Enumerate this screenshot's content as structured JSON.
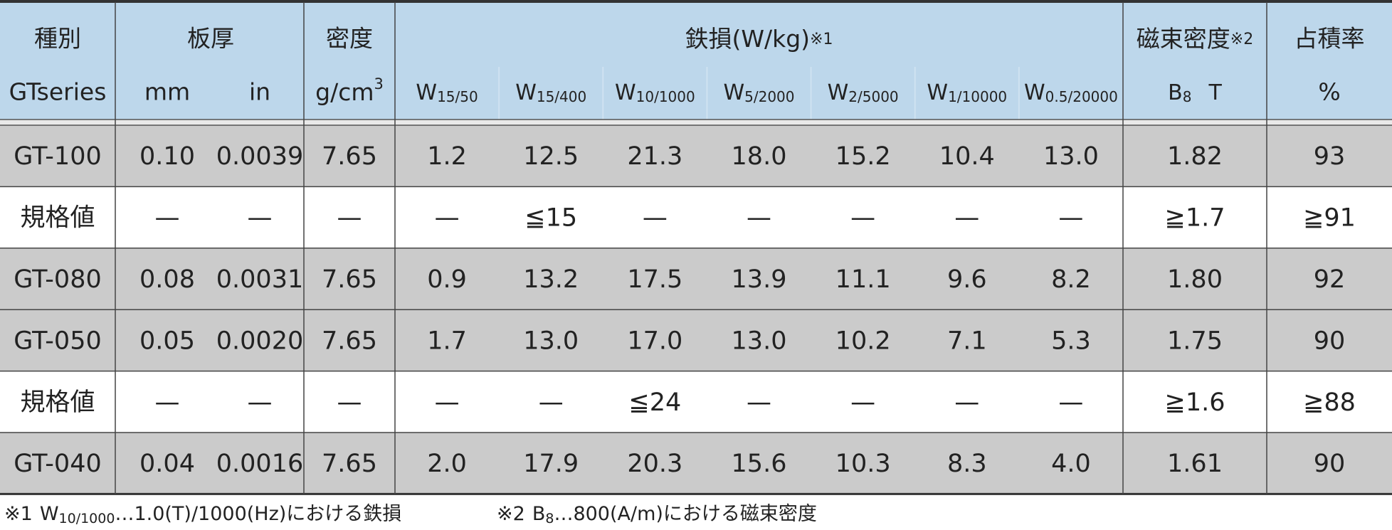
{
  "header": {
    "top": [
      "種別",
      "板厚",
      "密度",
      {
        "text": "鉄損(W/kg)",
        "note": "※1"
      },
      {
        "text": "磁束密度",
        "note": "※2"
      },
      "占積率"
    ],
    "bottom": [
      "GTseries",
      "mm",
      "in",
      {
        "main": "g/cm",
        "sup": "3"
      },
      {
        "main": "W",
        "sub": "15/50"
      },
      {
        "main": "W",
        "sub": "15/400"
      },
      {
        "main": "W",
        "sub": "10/1000"
      },
      {
        "main": "W",
        "sub": "5/2000"
      },
      {
        "main": "W",
        "sub": "2/5000"
      },
      {
        "main": "W",
        "sub": "1/10000"
      },
      {
        "main": "W",
        "sub": "0.5/20000"
      },
      {
        "main": "B",
        "sub": "8",
        "after": "T"
      },
      "%"
    ]
  },
  "table": {
    "rows": [
      [
        "GT-100",
        "0.10",
        "0.0039",
        "7.65",
        "1.2",
        "12.5",
        "21.3",
        "18.0",
        "15.2",
        "10.4",
        "13.0",
        "1.82",
        "93"
      ],
      [
        "規格値",
        "—",
        "—",
        "—",
        "—",
        "≦15",
        "—",
        "—",
        "—",
        "—",
        "—",
        "≧1.7",
        "≧91"
      ],
      [
        "GT-080",
        "0.08",
        "0.0031",
        "7.65",
        "0.9",
        "13.2",
        "17.5",
        "13.9",
        "11.1",
        "9.6",
        "8.2",
        "1.80",
        "92"
      ],
      [
        "GT-050",
        "0.05",
        "0.0020",
        "7.65",
        "1.7",
        "13.0",
        "17.0",
        "13.0",
        "10.2",
        "7.1",
        "5.3",
        "1.75",
        "90"
      ],
      [
        "規格値",
        "—",
        "—",
        "—",
        "—",
        "—",
        "≦24",
        "—",
        "—",
        "—",
        "—",
        "≧1.6",
        "≧88"
      ],
      [
        "GT-040",
        "0.04",
        "0.0016",
        "7.65",
        "2.0",
        "17.9",
        "20.3",
        "15.6",
        "10.3",
        "8.3",
        "4.0",
        "1.61",
        "90"
      ]
    ]
  },
  "footnotes": [
    {
      "mark": "※1",
      "main": "W",
      "sub": "10/1000",
      "text": "…1.0(T)/1000(Hz)における鉄損"
    },
    {
      "mark": "※2",
      "main": "B",
      "sub": "8",
      "text": "…800(A/m)における磁束密度"
    }
  ]
}
